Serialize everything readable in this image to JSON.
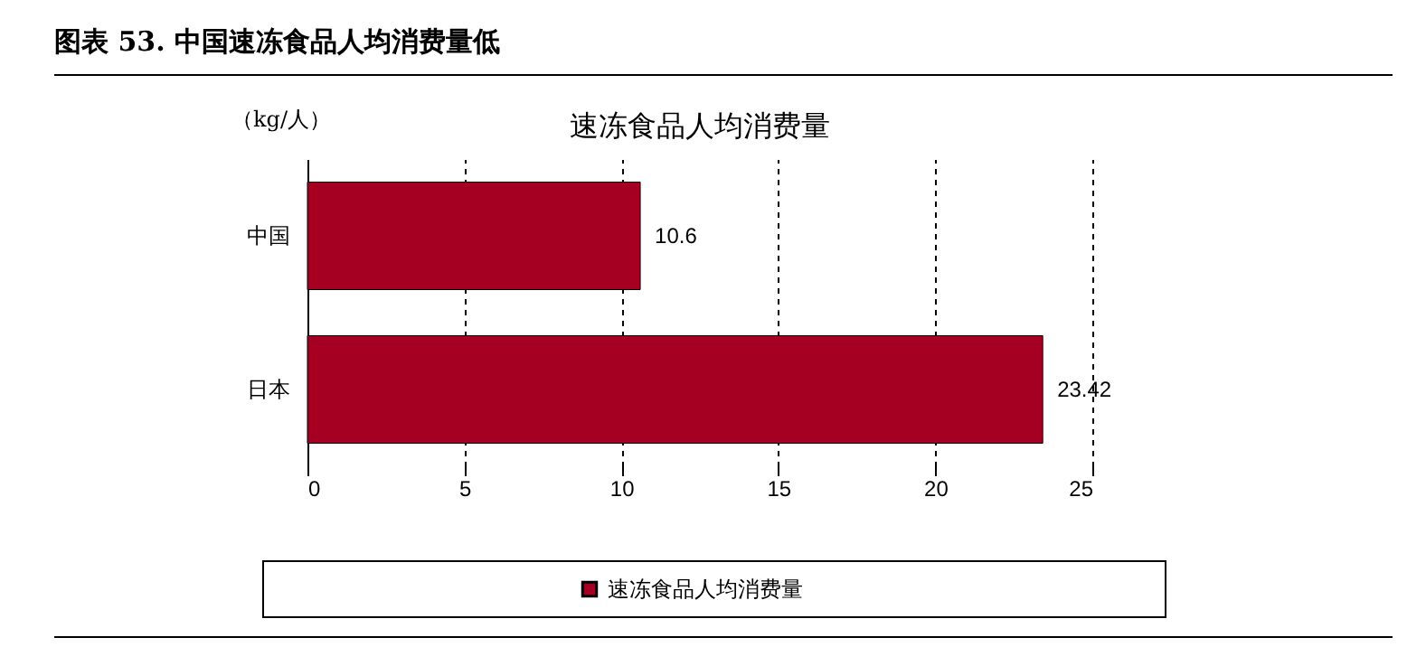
{
  "chart_data": {
    "type": "bar",
    "orientation": "horizontal",
    "title": "图表 53. 中国速冻食品人均消费量低",
    "subtitle": "速冻食品人均消费量",
    "ylabel": "（kg/人）",
    "categories": [
      "中国",
      "日本"
    ],
    "series": [
      {
        "name": "速冻食品人均消费量",
        "color": "#a50021",
        "values": [
          10.6,
          23.42
        ]
      }
    ],
    "xlim": [
      0,
      25
    ],
    "xticks": [
      0,
      5,
      10,
      15,
      20,
      25
    ],
    "grid": "x",
    "legend": "bottom",
    "data_labels": true
  }
}
